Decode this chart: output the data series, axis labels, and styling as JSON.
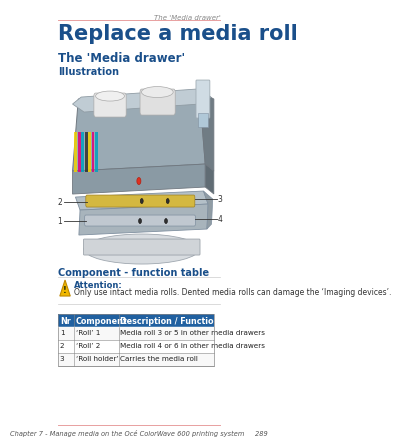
{
  "page_header": "The 'Media drawer'",
  "main_title": "Replace a media roll",
  "section_title": "The 'Media drawer'",
  "illustration_label": "Illustration",
  "component_table_title": "Component - function table",
  "attention_label": "Attention:",
  "attention_text": "Only use intact media rolls. Dented media rolls can damage the ‘Imaging devices’.",
  "table_headers": [
    "Nr",
    "Component",
    "Description / Function"
  ],
  "table_rows": [
    [
      "1",
      "‘Roll’ 1",
      "Media roll 3 or 5 in other media drawers"
    ],
    [
      "2",
      "‘Roll’ 2",
      "Media roll 4 or 6 in other media drawers"
    ],
    [
      "3",
      "‘Roll holder’",
      "Carries the media roll"
    ]
  ],
  "footer_text": "Chapter 7 - Manage media on the Océ ColorWave 600 printing system     289",
  "title_color": "#1a4f8a",
  "section_color": "#1a4f8a",
  "label_color": "#1a4f8a",
  "table_header_bg": "#2060a0",
  "table_border_color": "#888888",
  "attention_label_color": "#1a4f8a",
  "top_line_color": "#e8a0a0",
  "footer_line_color": "#e8a0a0",
  "footer_color": "#555555",
  "bg_color": "#ffffff",
  "callout_color": "#333333",
  "printer_body_color": "#a8b4bc",
  "printer_body_edge": "#707880",
  "drawer_color": "#b8c4cc",
  "drawer_edge": "#808c94"
}
